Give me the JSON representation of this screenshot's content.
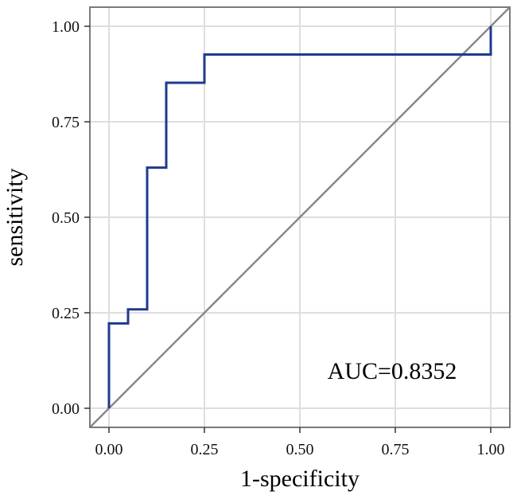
{
  "chart_data": {
    "type": "line",
    "title": "",
    "xlabel": "1-specificity",
    "ylabel": "sensitivity",
    "xlim": [
      -0.05,
      1.05
    ],
    "ylim": [
      -0.05,
      1.05
    ],
    "grid": true,
    "x_ticks": [
      0,
      0.25,
      0.5,
      0.75,
      1
    ],
    "y_ticks": [
      0,
      0.25,
      0.5,
      0.75,
      1
    ],
    "x_tick_labels": [
      "0.00",
      "0.25",
      "0.50",
      "0.75",
      "1.00"
    ],
    "y_tick_labels": [
      "0.00",
      "0.25",
      "0.50",
      "0.75",
      "1.00"
    ],
    "annotation": "AUC=0.8352",
    "series": [
      {
        "name": "ROC curve",
        "color": "#1f3a8f",
        "step": true,
        "x": [
          0,
          0,
          0.05,
          0.05,
          0.1,
          0.1,
          0.15,
          0.15,
          0.25,
          0.25,
          1.0,
          1.0
        ],
        "y": [
          0,
          0.222,
          0.222,
          0.259,
          0.259,
          0.63,
          0.63,
          0.852,
          0.852,
          0.926,
          0.926,
          1.0
        ]
      },
      {
        "name": "reference diagonal",
        "color": "#888888",
        "x": [
          -0.05,
          1.05
        ],
        "y": [
          -0.05,
          1.05
        ]
      }
    ]
  }
}
